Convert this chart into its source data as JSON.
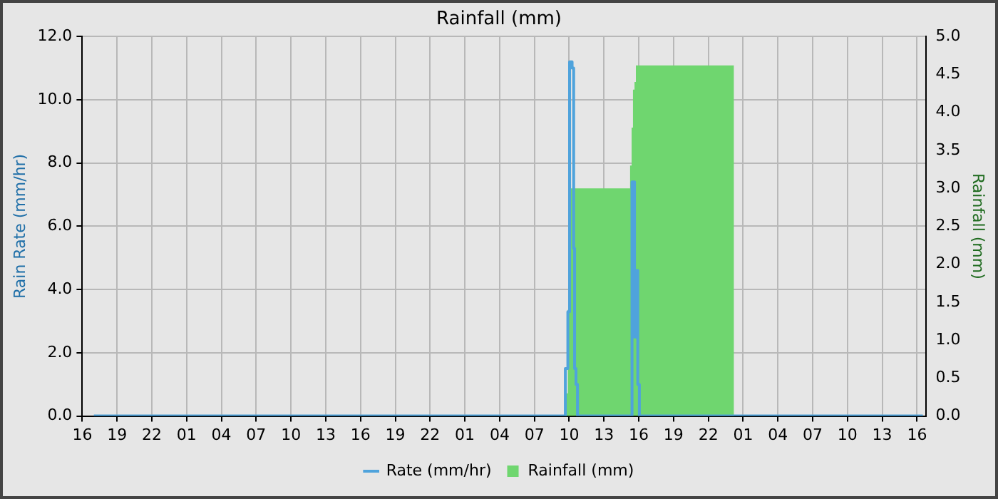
{
  "chart_data": {
    "type": "line",
    "title": "Rainfall (mm)",
    "ylabel": "Rain Rate (mm/hr)",
    "y2label": "Rainfall (mm)",
    "xlim": [
      "--01-01T16:00",
      "--01-04T16:45"
    ],
    "xticks": [
      {
        "value": "--01-01T16:00",
        "label": "16"
      },
      {
        "value": "--01-01T19:00",
        "label": "19"
      },
      {
        "value": "--01-01T22:00",
        "label": "22"
      },
      {
        "value": "--01-02T01:00",
        "label": "01"
      },
      {
        "value": "--01-02T04:00",
        "label": "04"
      },
      {
        "value": "--01-02T07:00",
        "label": "07"
      },
      {
        "value": "--01-02T10:00",
        "label": "10"
      },
      {
        "value": "--01-02T13:00",
        "label": "13"
      },
      {
        "value": "--01-02T16:00",
        "label": "16"
      },
      {
        "value": "--01-02T19:00",
        "label": "19"
      },
      {
        "value": "--01-02T22:00",
        "label": "22"
      },
      {
        "value": "--01-03T01:00",
        "label": "01"
      },
      {
        "value": "--01-03T04:00",
        "label": "04"
      },
      {
        "value": "--01-03T07:00",
        "label": "07"
      },
      {
        "value": "--01-03T10:00",
        "label": "10"
      },
      {
        "value": "--01-03T13:00",
        "label": "13"
      },
      {
        "value": "--01-03T16:00",
        "label": "16"
      },
      {
        "value": "--01-03T19:00",
        "label": "19"
      },
      {
        "value": "--01-03T22:00",
        "label": "22"
      },
      {
        "value": "--01-04T01:00",
        "label": "01"
      },
      {
        "value": "--01-04T04:00",
        "label": "04"
      },
      {
        "value": "--01-04T07:00",
        "label": "07"
      },
      {
        "value": "--01-04T10:00",
        "label": "10"
      },
      {
        "value": "--01-04T13:00",
        "label": "13"
      },
      {
        "value": "--01-04T16:00",
        "label": "16"
      }
    ],
    "ylim": [
      0,
      12
    ],
    "yticks": [
      {
        "value": 0,
        "label": "0.0"
      },
      {
        "value": 2,
        "label": "2.0"
      },
      {
        "value": 4,
        "label": "4.0"
      },
      {
        "value": 6,
        "label": "6.0"
      },
      {
        "value": 8,
        "label": "8.0"
      },
      {
        "value": 10,
        "label": "10.0"
      },
      {
        "value": 12,
        "label": "12.0"
      }
    ],
    "y2lim": [
      0,
      5
    ],
    "y2ticks": [
      {
        "value": 0,
        "label": "0.0"
      },
      {
        "value": 0.5,
        "label": "0.5"
      },
      {
        "value": 1,
        "label": "1.0"
      },
      {
        "value": 1.5,
        "label": "1.5"
      },
      {
        "value": 2,
        "label": "2.0"
      },
      {
        "value": 2.5,
        "label": "2.5"
      },
      {
        "value": 3,
        "label": "3.0"
      },
      {
        "value": 3.5,
        "label": "3.5"
      },
      {
        "value": 4,
        "label": "4.0"
      },
      {
        "value": 4.5,
        "label": "4.5"
      },
      {
        "value": 5,
        "label": "5.0"
      }
    ],
    "grid": true,
    "legend": "bottom",
    "series": [
      {
        "name": "Rate (mm/hr)",
        "type": "step",
        "color": "#4fa3dc",
        "x": [
          "--01-01T17:00",
          "--01-03T09:36",
          "--01-03T09:40",
          "--01-03T09:53",
          "--01-03T10:02",
          "--01-03T10:15",
          "--01-03T10:23",
          "--01-03T10:28",
          "--01-03T10:35",
          "--01-03T10:43",
          "--01-03T15:18",
          "--01-03T15:25",
          "--01-03T15:38",
          "--01-03T15:45",
          "--01-03T15:55",
          "--01-03T16:03",
          "--01-04T16:30"
        ],
        "values": [
          0,
          0,
          1.5,
          3.3,
          11.2,
          11.0,
          5.3,
          1.5,
          1.0,
          0,
          0,
          7.4,
          2.5,
          4.6,
          1.0,
          0,
          0
        ]
      },
      {
        "name": "Rainfall (mm)",
        "type": "area",
        "axis": "y2",
        "color": "#6fd66f",
        "x": [
          "--01-01T17:00",
          "--01-03T09:36",
          "--01-03T09:40",
          "--01-03T09:53",
          "--01-03T10:06",
          "--01-03T15:15",
          "--01-03T15:23",
          "--01-03T15:30",
          "--01-03T15:38",
          "--01-03T15:45",
          "--01-04T00:12",
          "--01-04T16:30"
        ],
        "values": [
          0,
          0,
          0.3,
          1.4,
          3.0,
          3.3,
          3.8,
          4.3,
          4.4,
          4.62,
          0,
          0
        ]
      }
    ]
  }
}
